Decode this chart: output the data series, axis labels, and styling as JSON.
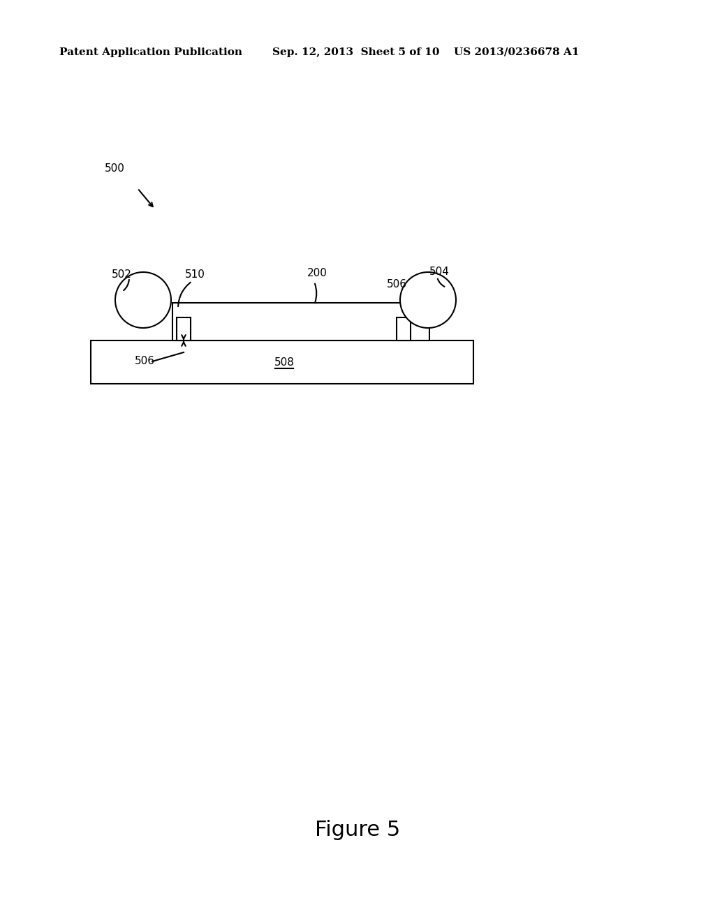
{
  "bg_color": "#ffffff",
  "header_left": "Patent Application Publication",
  "header_mid": "Sep. 12, 2013  Sheet 5 of 10",
  "header_right": "US 2013/0236678 A1",
  "figure_label": "Figure 5",
  "ref_500": "500",
  "ref_502": "502",
  "ref_504": "504",
  "ref_506_left": "506",
  "ref_506_right": "506",
  "ref_508": "508",
  "ref_510": "510",
  "ref_200": "200",
  "line_color": "#000000",
  "text_color": "#000000",
  "font_size_header": 11,
  "font_size_label": 11,
  "font_size_figure": 22
}
